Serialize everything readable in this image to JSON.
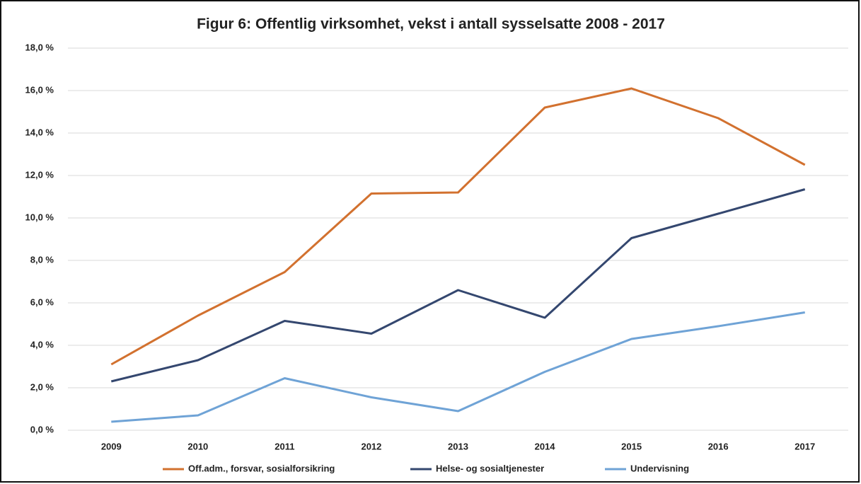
{
  "chart_data": {
    "type": "line",
    "title": "Figur 6: Offentlig virksomhet, vekst i antall sysselsatte 2008 - 2017",
    "categories": [
      "2009",
      "2010",
      "2011",
      "2012",
      "2013",
      "2014",
      "2015",
      "2016",
      "2017"
    ],
    "series": [
      {
        "name": "Off.adm., forsvar, sosialforsikring",
        "color": "#d2712f",
        "values": [
          3.1,
          5.4,
          7.45,
          11.15,
          11.2,
          15.2,
          16.1,
          14.7,
          12.5
        ]
      },
      {
        "name": "Helse- og sosialtjenester",
        "color": "#34476f",
        "values": [
          2.3,
          3.3,
          5.15,
          4.55,
          6.6,
          5.3,
          9.05,
          10.2,
          11.35
        ]
      },
      {
        "name": "Undervisning",
        "color": "#6fa3d6",
        "values": [
          0.4,
          0.7,
          2.45,
          1.55,
          0.9,
          2.75,
          4.3,
          4.9,
          5.55
        ]
      }
    ],
    "ylim": [
      0,
      18
    ],
    "yticks": [
      {
        "value": 0,
        "label": "0,0 %"
      },
      {
        "value": 2,
        "label": "2,0 %"
      },
      {
        "value": 4,
        "label": "4,0 %"
      },
      {
        "value": 6,
        "label": "6,0 %"
      },
      {
        "value": 8,
        "label": "8,0 %"
      },
      {
        "value": 10,
        "label": "10,0 %"
      },
      {
        "value": 12,
        "label": "12,0 %"
      },
      {
        "value": 14,
        "label": "14,0 %"
      },
      {
        "value": 16,
        "label": "16,0 %"
      },
      {
        "value": 18,
        "label": "18,0 %"
      }
    ],
    "grid": true,
    "legend": "bottom"
  }
}
